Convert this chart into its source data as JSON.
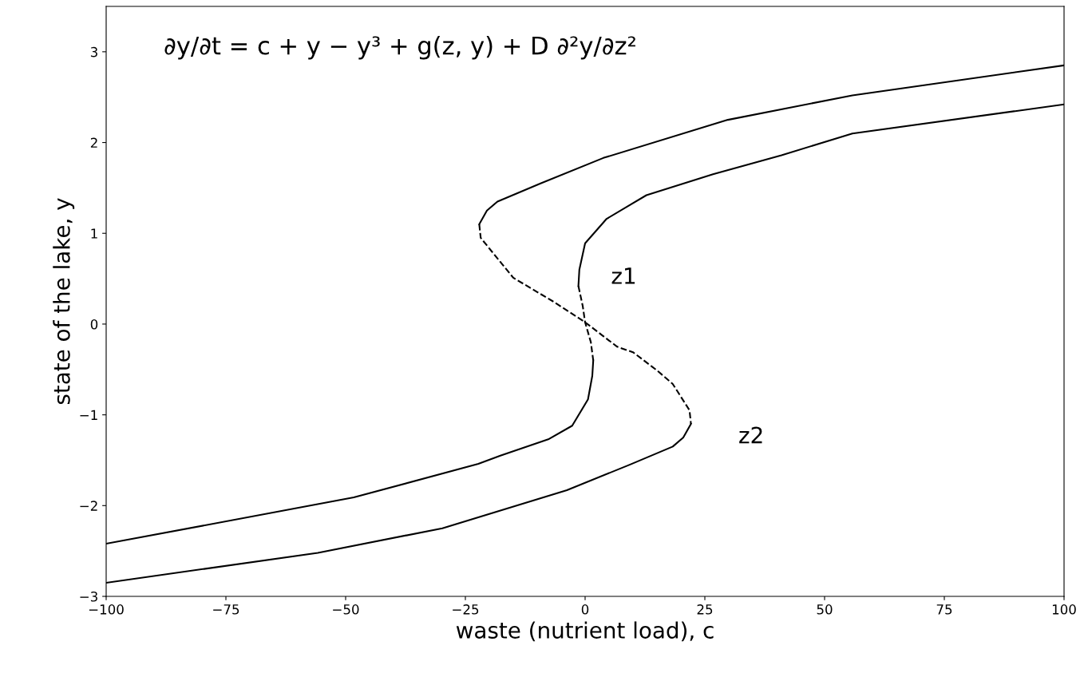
{
  "chart_data": {
    "type": "line",
    "xlabel": "waste (nutrient load), c",
    "ylabel": "state of the lake, y",
    "xlim": [
      -100,
      100
    ],
    "ylim": [
      -3,
      3.5
    ],
    "xticks": [
      -100,
      -75,
      -50,
      -25,
      0,
      25,
      50,
      75,
      100
    ],
    "yticks": [
      -3,
      -2,
      -1,
      0,
      1,
      2,
      3
    ],
    "grid": false,
    "marker": "none",
    "annotations": [
      "∂y/∂t = c + y − y³ + g(z, y) + D ∂²y/∂z²",
      "z1",
      "z2"
    ],
    "series": [
      {
        "color": "#000000",
        "line_style": "solid",
        "x": [
          100,
          55.8,
          29.8,
          3.8,
          -9.3,
          -18.3,
          -20.5,
          -22.1
        ],
        "values": [
          2.85,
          2.52,
          2.25,
          1.83,
          1.55,
          1.35,
          1.25,
          1.1
        ]
      },
      {
        "color": "#000000",
        "line_style": "dashed",
        "x": [
          -22.1,
          -21.8,
          -15,
          -6.7,
          0,
          6.7,
          10,
          15,
          18.3,
          21.8,
          22.1
        ],
        "values": [
          1.1,
          0.95,
          0.51,
          0.25,
          0.02,
          -0.25,
          -0.31,
          -0.51,
          -0.66,
          -0.95,
          -1.1
        ]
      },
      {
        "color": "#000000",
        "line_style": "solid",
        "x": [
          22.1,
          20.5,
          18.3,
          9.3,
          -3.8,
          -29.8,
          -55.8,
          -100
        ],
        "values": [
          -1.1,
          -1.25,
          -1.35,
          -1.55,
          -1.83,
          -2.25,
          -2.52,
          -2.85
        ]
      },
      {
        "color": "#000000",
        "line_style": "solid",
        "x": [
          100,
          55.8,
          41,
          26.7,
          12.8,
          4.5,
          0,
          -1.2,
          -1.4
        ],
        "values": [
          2.42,
          2.1,
          1.86,
          1.65,
          1.42,
          1.16,
          0.89,
          0.6,
          0.42
        ]
      },
      {
        "color": "#000000",
        "line_style": "dashed",
        "x": [
          -1.4,
          -0.5,
          0,
          1.2,
          1.7
        ],
        "values": [
          0.42,
          0.2,
          0.02,
          -0.2,
          -0.4
        ]
      },
      {
        "color": "#000000",
        "line_style": "solid",
        "x": [
          1.7,
          1.5,
          0.6,
          -2.7,
          -7.7,
          -17.7,
          -22.3,
          -48.3,
          -100
        ],
        "values": [
          -0.4,
          -0.57,
          -0.83,
          -1.12,
          -1.27,
          -1.45,
          -1.54,
          -1.91,
          -2.42
        ]
      }
    ]
  }
}
